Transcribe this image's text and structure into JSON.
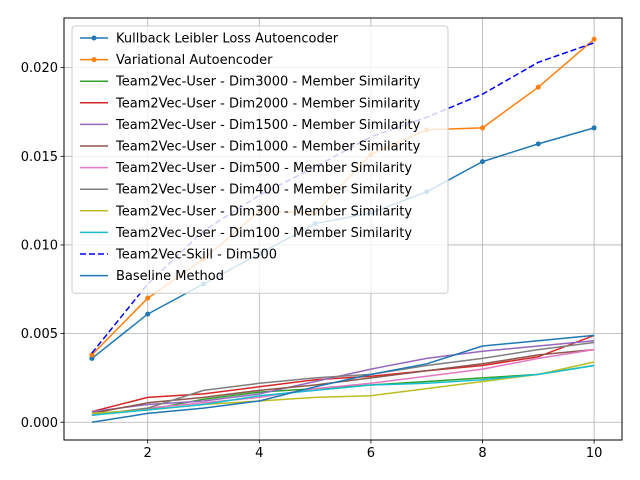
{
  "chart_data": {
    "type": "line",
    "title": "",
    "xlabel": "",
    "ylabel": "",
    "xlim": [
      0.5,
      10.5
    ],
    "ylim": [
      -0.001,
      0.0228
    ],
    "grid": true,
    "legend_position": "top-left",
    "x_ticks": [
      2,
      4,
      6,
      8,
      10
    ],
    "x_tick_labels": [
      "2",
      "4",
      "6",
      "8",
      "10"
    ],
    "y_ticks": [
      0.0,
      0.005,
      0.01,
      0.015,
      0.02
    ],
    "y_tick_labels": [
      "0.000",
      "0.005",
      "0.010",
      "0.015",
      "0.020"
    ],
    "x": [
      1,
      2,
      3,
      4,
      5,
      6,
      7,
      8,
      9,
      10
    ],
    "series": [
      {
        "name": "Kullback Leibler Loss Autoencoder",
        "color": "#1f77b4",
        "style": "solid",
        "marker": true,
        "values": [
          0.0036,
          0.0061,
          0.0078,
          0.0095,
          0.0112,
          0.0118,
          0.013,
          0.0147,
          0.0157,
          0.0166
        ]
      },
      {
        "name": "Variational Autoencoder",
        "color": "#ff7f0e",
        "style": "solid",
        "marker": true,
        "values": [
          0.0038,
          0.007,
          0.0092,
          0.0119,
          0.0118,
          0.0151,
          0.0165,
          0.0166,
          0.0189,
          0.0216
        ]
      },
      {
        "name": "Team2Vec-User - Dim3000 - Member Similarity",
        "color": "#2ca02c",
        "style": "solid",
        "marker": false,
        "values": [
          0.0005,
          0.0007,
          0.0013,
          0.0017,
          0.0019,
          0.0021,
          0.0023,
          0.0025,
          0.0027,
          0.0032
        ]
      },
      {
        "name": "Team2Vec-User - Dim2000 - Member Similarity",
        "color": "#d62728",
        "style": "solid",
        "marker": false,
        "values": [
          0.0006,
          0.0014,
          0.0016,
          0.002,
          0.0024,
          0.0026,
          0.0029,
          0.0032,
          0.0037,
          0.0049
        ]
      },
      {
        "name": "Team2Vec-User - Dim1500 - Member Similarity",
        "color": "#9467bd",
        "style": "solid",
        "marker": false,
        "values": [
          0.0006,
          0.001,
          0.0012,
          0.0016,
          0.0023,
          0.003,
          0.0036,
          0.004,
          0.0043,
          0.0046
        ]
      },
      {
        "name": "Team2Vec-User - Dim1000 - Member Similarity",
        "color": "#8c564b",
        "style": "solid",
        "marker": false,
        "values": [
          0.0005,
          0.0011,
          0.0014,
          0.0018,
          0.0021,
          0.0025,
          0.0029,
          0.0033,
          0.0038,
          0.0041
        ]
      },
      {
        "name": "Team2Vec-User - Dim500 - Member Similarity",
        "color": "#e377c2",
        "style": "solid",
        "marker": false,
        "values": [
          0.0004,
          0.0008,
          0.0011,
          0.0014,
          0.0019,
          0.0022,
          0.0026,
          0.003,
          0.0036,
          0.0041
        ]
      },
      {
        "name": "Team2Vec-User - Dim400 - Member Similarity",
        "color": "#7f7f7f",
        "style": "solid",
        "marker": false,
        "values": [
          0.0004,
          0.0008,
          0.0018,
          0.0022,
          0.0025,
          0.0027,
          0.0032,
          0.0036,
          0.0041,
          0.0045
        ]
      },
      {
        "name": "Team2Vec-User - Dim300 - Member Similarity",
        "color": "#bcbd22",
        "style": "solid",
        "marker": false,
        "values": [
          0.0005,
          0.0007,
          0.001,
          0.0012,
          0.0014,
          0.0015,
          0.0019,
          0.0023,
          0.0027,
          0.0034
        ]
      },
      {
        "name": "Team2Vec-User - Dim100 - Member Similarity",
        "color": "#17becf",
        "style": "solid",
        "marker": false,
        "values": [
          0.0004,
          0.0007,
          0.001,
          0.0015,
          0.0018,
          0.0021,
          0.0022,
          0.0024,
          0.0027,
          0.0032
        ]
      },
      {
        "name": "Team2Vec-Skill - Dim500",
        "color": "#0000ff",
        "style": "dashed",
        "marker": false,
        "values": [
          0.0039,
          0.0078,
          0.0108,
          0.0128,
          0.0144,
          0.0161,
          0.0172,
          0.0185,
          0.0203,
          0.0214
        ]
      },
      {
        "name": "Baseline Method",
        "color": "#1f77b4",
        "style": "solid",
        "marker": false,
        "values": [
          0.0,
          0.0005,
          0.0008,
          0.0012,
          0.002,
          0.0027,
          0.0033,
          0.0043,
          0.0046,
          0.0049
        ]
      }
    ]
  }
}
